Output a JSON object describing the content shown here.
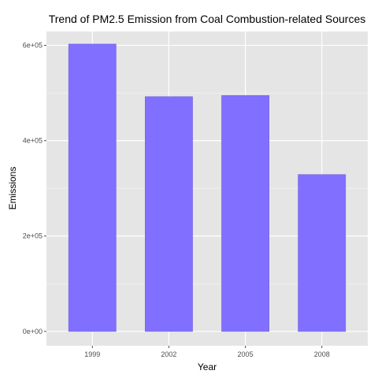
{
  "chart_data": {
    "type": "bar",
    "title": "Trend of PM2.5 Emission from Coal Combustion-related Sources",
    "xlabel": "Year",
    "ylabel": "Emissions",
    "categories": [
      "1999",
      "2002",
      "2005",
      "2008"
    ],
    "values": [
      602624,
      492320,
      494855,
      329017
    ],
    "ylim": [
      -30000,
      629000
    ],
    "yticks": [
      0,
      200000,
      400000,
      600000
    ],
    "ytick_labels": [
      "0e+00",
      "2e+05",
      "4e+05",
      "6e+05"
    ],
    "grid": true,
    "colors": {
      "bar_fill": "#8170FF",
      "bar_stroke": "#7465D9",
      "panel_background": "#E5E5E5",
      "major_grid": "#FFFFFF",
      "minor_grid": "#F2F2F2",
      "tick_label": "#4D4D4D"
    }
  }
}
